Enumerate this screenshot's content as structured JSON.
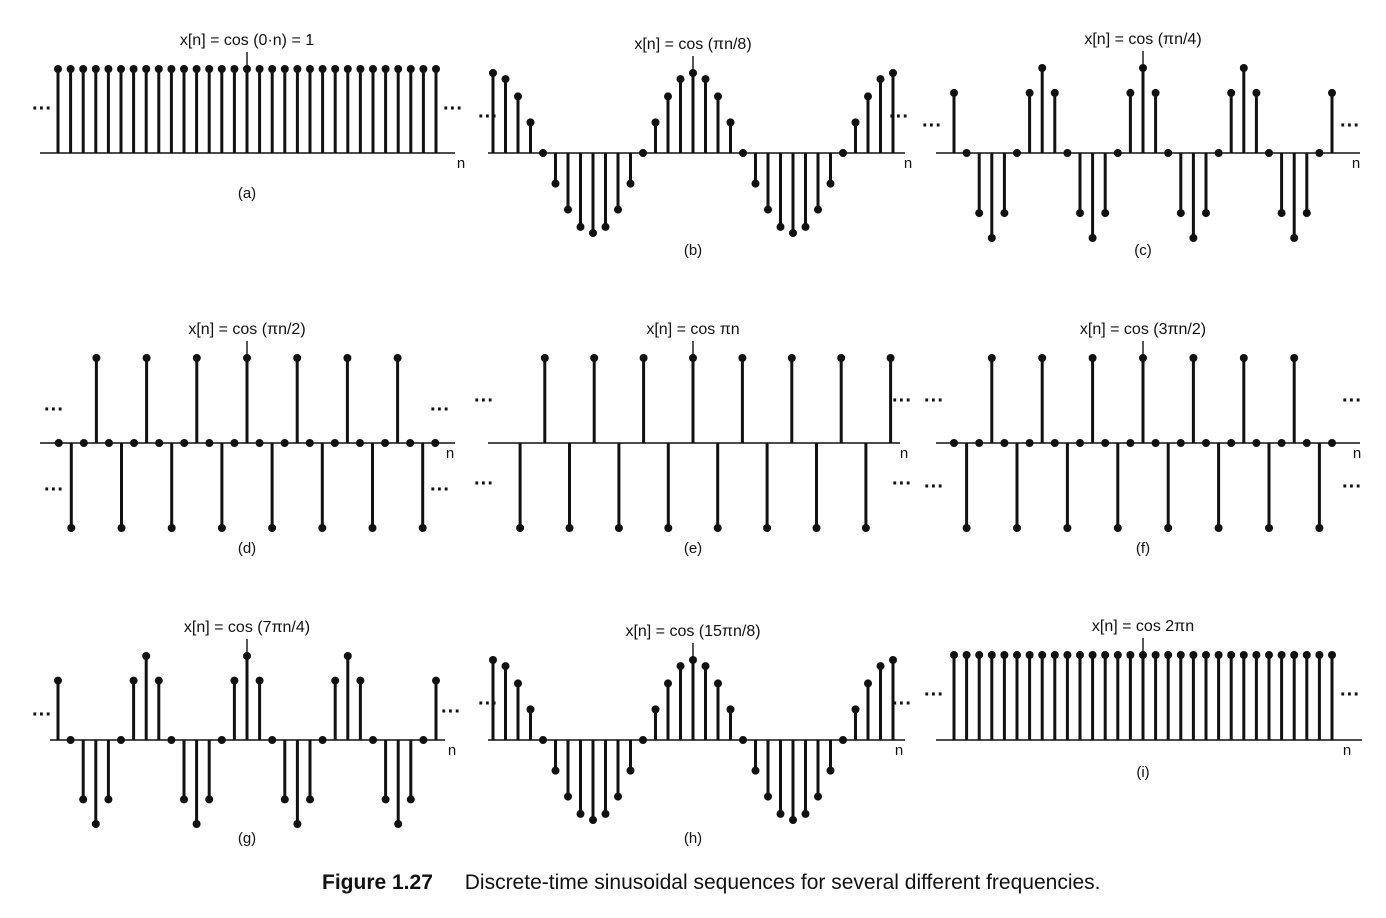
{
  "figure_caption": {
    "label": "Figure 1.27",
    "text": "Discrete-time sinusoidal sequences for several different frequencies."
  },
  "colors": {
    "ink": "#111111",
    "background": "#ffffff"
  },
  "chart_data": [
    {
      "type": "stem",
      "panel_label": "(a)",
      "title": "x[n] = cos (0·n) = 1",
      "xlabel": "n",
      "ellipsis": "···",
      "omega_over_pi": 0,
      "n_range": [
        -15,
        15
      ],
      "ylim": [
        -1,
        1
      ],
      "values_formula": "cos(0·n)",
      "values_sample_n0_to_n7": [
        1,
        1,
        1,
        1,
        1,
        1,
        1,
        1
      ]
    },
    {
      "type": "stem",
      "panel_label": "(b)",
      "title": "x[n] = cos (πn/8)",
      "xlabel": "n",
      "ellipsis": "···",
      "omega_over_pi": 0.125,
      "n_range": [
        -18,
        18
      ],
      "ylim": [
        -1,
        1
      ],
      "values_formula": "cos(πn/8)",
      "values_sample_n0_to_n7": [
        1,
        0.92,
        0.71,
        0.38,
        0,
        -0.38,
        -0.71,
        -0.92
      ]
    },
    {
      "type": "stem",
      "panel_label": "(c)",
      "title": "x[n] = cos (πn/4)",
      "xlabel": "n",
      "ellipsis": "···",
      "omega_over_pi": 0.25,
      "n_range": [
        -15,
        15
      ],
      "ylim": [
        -1,
        1
      ],
      "values_formula": "cos(πn/4)",
      "values_sample_n0_to_n7": [
        1,
        0.71,
        0,
        -0.71,
        -1,
        -0.71,
        0,
        0.71
      ]
    },
    {
      "type": "stem",
      "panel_label": "(d)",
      "title": "x[n] = cos (πn/2)",
      "xlabel": "n",
      "ellipsis": "···",
      "omega_over_pi": 0.5,
      "n_range": [
        -15,
        15
      ],
      "ylim": [
        -1,
        1
      ],
      "values_formula": "cos(πn/2)",
      "values_sample_n0_to_n7": [
        1,
        0,
        -1,
        0,
        1,
        0,
        -1,
        0
      ]
    },
    {
      "type": "stem",
      "panel_label": "(e)",
      "title": "x[n] = cos πn",
      "xlabel": "n",
      "ellipsis": "···",
      "omega_over_pi": 1,
      "n_range": [
        -7,
        8
      ],
      "ylim": [
        -1,
        1
      ],
      "values_formula": "cos(πn)",
      "values_sample_n0_to_n7": [
        1,
        -1,
        1,
        -1,
        1,
        -1,
        1,
        -1
      ]
    },
    {
      "type": "stem",
      "panel_label": "(f)",
      "title": "x[n] = cos (3πn/2)",
      "xlabel": "n",
      "ellipsis": "···",
      "omega_over_pi": 1.5,
      "n_range": [
        -15,
        15
      ],
      "ylim": [
        -1,
        1
      ],
      "values_formula": "cos(3πn/2)",
      "values_sample_n0_to_n7": [
        1,
        0,
        -1,
        0,
        1,
        0,
        -1,
        0
      ]
    },
    {
      "type": "stem",
      "panel_label": "(g)",
      "title": "x[n] = cos (7πn/4)",
      "xlabel": "n",
      "ellipsis": "···",
      "omega_over_pi": 1.75,
      "n_range": [
        -15,
        15
      ],
      "ylim": [
        -1,
        1
      ],
      "values_formula": "cos(7πn/4)",
      "values_sample_n0_to_n7": [
        1,
        0.71,
        0,
        -0.71,
        -1,
        -0.71,
        0,
        0.71
      ]
    },
    {
      "type": "stem",
      "panel_label": "(h)",
      "title": "x[n] = cos (15πn/8)",
      "xlabel": "n",
      "ellipsis": "···",
      "omega_over_pi": 1.875,
      "n_range": [
        -18,
        18
      ],
      "ylim": [
        -1,
        1
      ],
      "values_formula": "cos(15πn/8)",
      "values_sample_n0_to_n7": [
        1,
        0.92,
        0.71,
        0.38,
        0,
        -0.38,
        -0.71,
        -0.92
      ]
    },
    {
      "type": "stem",
      "panel_label": "(i)",
      "title": "x[n] = cos 2πn",
      "xlabel": "n",
      "ellipsis": "···",
      "omega_over_pi": 2,
      "n_range": [
        -15,
        15
      ],
      "ylim": [
        -1,
        1
      ],
      "values_formula": "cos(2πn)",
      "values_sample_n0_to_n7": [
        1,
        1,
        1,
        1,
        1,
        1,
        1,
        1
      ]
    }
  ]
}
